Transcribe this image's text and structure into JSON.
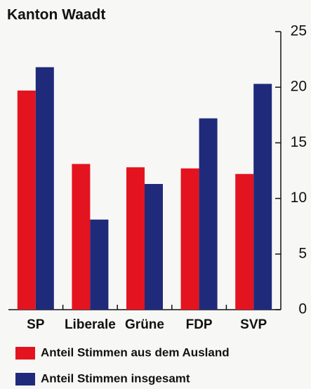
{
  "chart_data": {
    "type": "bar",
    "title": "Kanton Waadt",
    "categories": [
      "SP",
      "Liberale",
      "Grüne",
      "FDP",
      "SVP"
    ],
    "series": [
      {
        "name": "Anteil Stimmen aus dem Ausland",
        "color": "#e3141f",
        "values": [
          19.7,
          13.1,
          12.8,
          12.7,
          12.2
        ]
      },
      {
        "name": "Anteil Stimmen insgesamt",
        "color": "#1f2a7a",
        "values": [
          21.8,
          8.1,
          11.3,
          17.2,
          20.3
        ]
      }
    ],
    "ylim": [
      0,
      25
    ],
    "yticks": [
      0,
      5,
      10,
      15,
      20,
      25
    ],
    "axis_side": "right"
  }
}
